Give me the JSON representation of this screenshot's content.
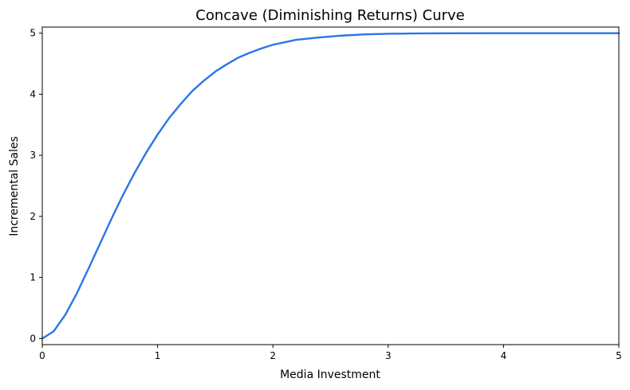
{
  "chart_data": {
    "type": "line",
    "title": "Concave (Diminishing Returns) Curve",
    "xlabel": "Media Investment",
    "ylabel": "Incremental Sales",
    "xlim": [
      0,
      5
    ],
    "ylim": [
      -0.1,
      5.1
    ],
    "xticks": [
      "0",
      "1",
      "2",
      "3",
      "4",
      "5"
    ],
    "yticks": [
      "0",
      "1",
      "2",
      "3",
      "4",
      "5"
    ],
    "grid": false,
    "line_color": "#2a76e6",
    "series": [
      {
        "x": [
          0,
          0.1,
          0.2,
          0.3,
          0.4,
          0.5,
          0.6,
          0.7,
          0.8,
          0.9,
          1.0,
          1.1,
          1.2,
          1.3,
          1.4,
          1.5,
          1.6,
          1.7,
          1.8,
          1.9,
          2.0,
          2.2,
          2.4,
          2.6,
          2.8,
          3.0,
          3.2,
          3.5,
          4.0,
          4.5,
          5.0
        ],
        "y": [
          0,
          0.12,
          0.39,
          0.74,
          1.14,
          1.55,
          1.96,
          2.35,
          2.71,
          3.04,
          3.34,
          3.61,
          3.84,
          4.05,
          4.22,
          4.37,
          4.49,
          4.6,
          4.68,
          4.75,
          4.81,
          4.89,
          4.93,
          4.96,
          4.98,
          4.99,
          4.995,
          4.998,
          5.0,
          5.0,
          5.0
        ]
      }
    ]
  }
}
